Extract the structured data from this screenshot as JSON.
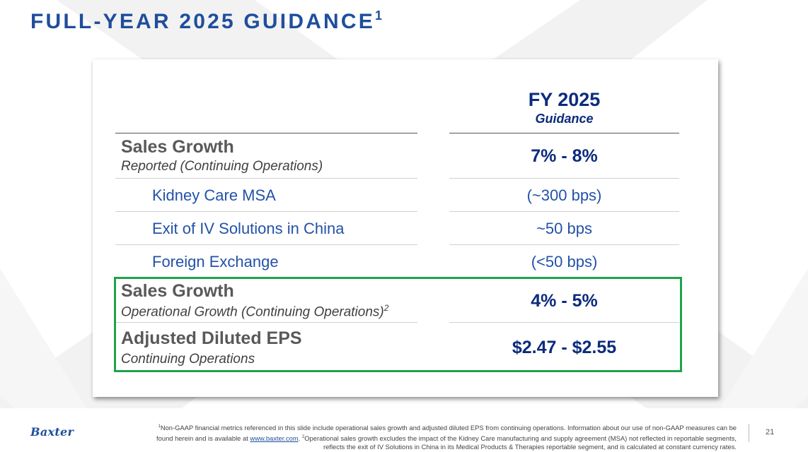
{
  "slide": {
    "title": "FULL-YEAR 2025 GUIDANCE",
    "title_sup": "1",
    "page_number": "21"
  },
  "table": {
    "header": {
      "year": "FY 2025",
      "sub": "Guidance"
    },
    "rows": [
      {
        "label": "Sales Growth",
        "sublabel": "Reported (Continuing Operations)",
        "value": "7% - 8%"
      },
      {
        "label": "Kidney Care MSA",
        "value": "(~300 bps)"
      },
      {
        "label": "Exit of IV Solutions in China",
        "value": "~50 bps"
      },
      {
        "label": "Foreign Exchange",
        "value": "(<50 bps)"
      },
      {
        "label": "Sales Growth",
        "sublabel": "Operational Growth (Continuing Operations)",
        "sublabel_sup": "2",
        "value": "4% - 5%"
      },
      {
        "label": "Adjusted Diluted EPS",
        "sublabel": "Continuing Operations",
        "value": "$2.47 - $2.55"
      }
    ]
  },
  "footer": {
    "logo": "Baxter",
    "fn1_sup": "1",
    "fn1_text": "Non-GAAP financial metrics referenced in this slide include operational sales growth and adjusted diluted EPS from continuing operations. Information about our use of non-GAAP measures can be found herein and is available at",
    "fn1_link": "www.baxter.com",
    "fn2_sup": "2",
    "fn2_text": "Operational sales growth excludes the impact of the Kidney Care manufacturing and supply agreement (MSA) not reflected in reportable segments, reflects the exit of IV Solutions in China in its Medical Products & Therapies reportable segment, and is calculated at constant currency rates."
  },
  "colors": {
    "title": "#1f4e9c",
    "value_dark": "#0c2b7c",
    "value_light": "#2352a8",
    "highlight_border": "#1fa34a"
  }
}
